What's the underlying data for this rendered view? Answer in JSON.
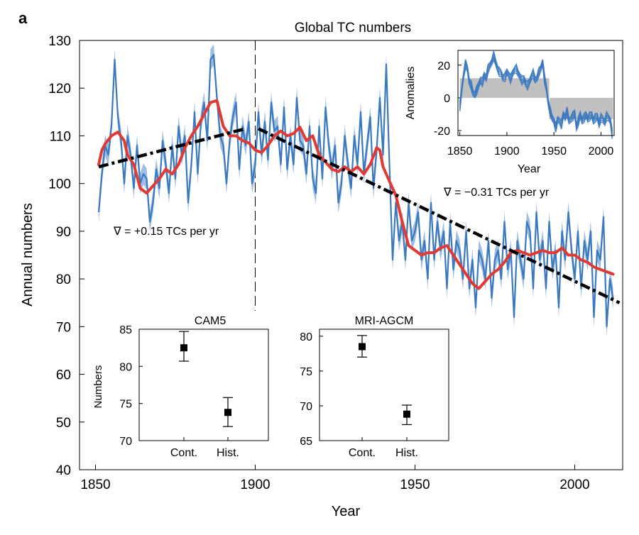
{
  "panel_label": "a",
  "colors": {
    "annual": "#3a78bf",
    "annual_band": "#9dbde3",
    "smooth": "#e03a33",
    "trend": "#000000",
    "anomaly_fill": "#c0c0c0"
  },
  "chart_data": [
    {
      "id": "main",
      "type": "line",
      "title": "Global TC numbers",
      "xlabel": "Year",
      "ylabel": "Annual numbers",
      "xlim": [
        1845,
        2015
      ],
      "ylim": [
        40,
        130
      ],
      "xticks": [
        1850,
        1900,
        1950,
        2000
      ],
      "yticks": [
        40,
        50,
        60,
        70,
        80,
        90,
        100,
        110,
        120,
        130
      ],
      "split_year": 1900,
      "series": [
        {
          "kind": "annual",
          "x": [
            1851,
            1852,
            1853,
            1854,
            1855,
            1856,
            1857,
            1858,
            1859,
            1860,
            1861,
            1862,
            1863,
            1864,
            1865,
            1866,
            1867,
            1868,
            1869,
            1870,
            1871,
            1872,
            1873,
            1874,
            1875,
            1876,
            1877,
            1878,
            1879,
            1880,
            1881,
            1882,
            1883,
            1884,
            1885,
            1886,
            1887,
            1888,
            1889,
            1890,
            1891,
            1892,
            1893,
            1894,
            1895,
            1896,
            1897,
            1898,
            1899,
            1900,
            1901,
            1902,
            1903,
            1904,
            1905,
            1906,
            1907,
            1908,
            1909,
            1910,
            1911,
            1912,
            1913,
            1914,
            1915,
            1916,
            1917,
            1918,
            1919,
            1920,
            1921,
            1922,
            1923,
            1924,
            1925,
            1926,
            1927,
            1928,
            1929,
            1930,
            1931,
            1932,
            1933,
            1934,
            1935,
            1936,
            1937,
            1938,
            1939,
            1940,
            1941,
            1942,
            1943,
            1944,
            1945,
            1946,
            1947,
            1948,
            1949,
            1950,
            1951,
            1952,
            1953,
            1954,
            1955,
            1956,
            1957,
            1958,
            1959,
            1960,
            1961,
            1962,
            1963,
            1964,
            1965,
            1966,
            1967,
            1968,
            1969,
            1970,
            1971,
            1972,
            1973,
            1974,
            1975,
            1976,
            1977,
            1978,
            1979,
            1980,
            1981,
            1982,
            1983,
            1984,
            1985,
            1986,
            1987,
            1988,
            1989,
            1990,
            1991,
            1992,
            1993,
            1994,
            1995,
            1996,
            1997,
            1998,
            1999,
            2000,
            2001,
            2002,
            2003,
            2004,
            2005,
            2006,
            2007,
            2008,
            2009,
            2010,
            2011,
            2012
          ],
          "y": [
            94,
            102,
            108,
            106,
            112,
            126,
            114,
            109,
            100,
            110,
            106,
            99,
            108,
            100,
            102,
            101,
            92,
            96,
            103,
            99,
            109,
            104,
            98,
            108,
            101,
            112,
            106,
            110,
            96,
            104,
            115,
            102,
            113,
            117,
            109,
            126,
            127,
            118,
            110,
            108,
            100,
            109,
            114,
            117,
            103,
            112,
            108,
            113,
            100,
            104,
            115,
            106,
            113,
            105,
            117,
            111,
            112,
            104,
            116,
            103,
            110,
            104,
            118,
            109,
            108,
            102,
            112,
            101,
            98,
            112,
            101,
            116,
            108,
            103,
            108,
            96,
            100,
            110,
            104,
            99,
            110,
            104,
            115,
            102,
            108,
            114,
            99,
            107,
            118,
            106,
            125,
            104,
            84,
            96,
            88,
            92,
            84,
            96,
            88,
            90,
            94,
            84,
            88,
            80,
            96,
            84,
            92,
            86,
            90,
            78,
            92,
            82,
            88,
            86,
            80,
            90,
            78,
            84,
            74,
            86,
            84,
            80,
            88,
            76,
            84,
            86,
            80,
            92,
            82,
            86,
            72,
            88,
            84,
            80,
            92,
            90,
            78,
            94,
            84,
            88,
            78,
            92,
            82,
            86,
            74,
            90,
            84,
            94,
            86,
            80,
            90,
            78,
            88,
            84,
            90,
            72,
            86,
            84,
            93,
            70,
            80,
            76
          ]
        },
        {
          "kind": "smoothed",
          "x": [
            1851,
            1852,
            1853,
            1855,
            1857,
            1859,
            1860,
            1862,
            1864,
            1866,
            1868,
            1870,
            1872,
            1874,
            1876,
            1878,
            1880,
            1882,
            1884,
            1886,
            1888,
            1890,
            1892,
            1894,
            1896,
            1898,
            1900,
            1902,
            1904,
            1906,
            1908,
            1910,
            1912,
            1914,
            1916,
            1918,
            1920,
            1922,
            1924,
            1926,
            1928,
            1930,
            1932,
            1934,
            1936,
            1938,
            1939,
            1940,
            1942,
            1944,
            1946,
            1948,
            1950,
            1952,
            1954,
            1956,
            1958,
            1960,
            1962,
            1964,
            1966,
            1968,
            1970,
            1972,
            1974,
            1976,
            1978,
            1980,
            1982,
            1984,
            1986,
            1988,
            1990,
            1992,
            1994,
            1996,
            1998,
            2000,
            2002,
            2004,
            2006,
            2008,
            2010,
            2012
          ],
          "y": [
            104,
            107,
            108.3,
            110,
            110.8,
            109,
            106,
            104,
            99,
            98,
            99.5,
            101,
            103,
            102,
            104,
            107.5,
            110,
            112,
            114.5,
            117,
            117.4,
            112,
            110,
            110,
            109,
            108.5,
            107,
            106.5,
            108,
            110,
            111,
            110,
            110.5,
            111.8,
            109,
            110,
            106,
            104.5,
            103,
            102.5,
            103.5,
            102.5,
            103.5,
            102,
            104,
            107.5,
            107,
            103.5,
            100.5,
            97.5,
            92,
            87,
            86,
            85,
            85.5,
            85.5,
            86.5,
            87,
            85,
            83,
            81,
            79,
            78,
            79.5,
            81,
            82,
            83.5,
            85.5,
            86,
            85.5,
            85,
            85.5,
            86,
            85.5,
            85.5,
            86.5,
            85,
            85,
            84,
            83.5,
            82.5,
            82,
            81.5,
            81
          ]
        },
        {
          "kind": "trend",
          "label": "∇ = +0.15 TCs per yr",
          "x": [
            1851,
            1897
          ],
          "y": [
            103.5,
            111.5
          ]
        },
        {
          "kind": "trend",
          "label": "∇ = −0.31 TCs per yr",
          "x": [
            1901,
            2014
          ],
          "y": [
            111.5,
            75
          ]
        }
      ]
    },
    {
      "id": "anomalies-inset",
      "type": "line",
      "title": "",
      "xlabel": "Year",
      "ylabel": "Anomalies",
      "xlim": [
        1848,
        2014
      ],
      "ylim": [
        -23,
        29
      ],
      "xticks": [
        1850,
        1900,
        1950,
        2000
      ],
      "yticks": [
        -20,
        0,
        20
      ],
      "shading": [
        {
          "x": [
            1850,
            1945
          ],
          "y": 12
        },
        {
          "x": [
            1945,
            2013
          ],
          "y": -13
        }
      ],
      "series": [
        {
          "kind": "anomaly-ensemble",
          "x": [
            1850,
            1852,
            1854,
            1856,
            1858,
            1860,
            1862,
            1864,
            1866,
            1868,
            1870,
            1872,
            1874,
            1876,
            1878,
            1880,
            1882,
            1884,
            1886,
            1888,
            1890,
            1892,
            1894,
            1896,
            1898,
            1900,
            1902,
            1904,
            1906,
            1908,
            1910,
            1912,
            1914,
            1916,
            1918,
            1920,
            1922,
            1924,
            1926,
            1928,
            1930,
            1932,
            1934,
            1936,
            1938,
            1940,
            1942,
            1944,
            1946,
            1948,
            1950,
            1952,
            1954,
            1956,
            1958,
            1960,
            1962,
            1964,
            1966,
            1968,
            1970,
            1972,
            1974,
            1976,
            1978,
            1980,
            1982,
            1984,
            1986,
            1988,
            1990,
            1992,
            1994,
            1996,
            1998,
            2000,
            2002,
            2004,
            2006,
            2008,
            2010,
            2012
          ],
          "y": [
            -5,
            5,
            14,
            21,
            18,
            10,
            8,
            3,
            2,
            5,
            8,
            11,
            10,
            14,
            12,
            18,
            20,
            22,
            26,
            22,
            18,
            16,
            15,
            12,
            13,
            16,
            14,
            12,
            15,
            17,
            18,
            15,
            13,
            11,
            12,
            9,
            8,
            10,
            13,
            15,
            11,
            12,
            16,
            18,
            22,
            12,
            6,
            -3,
            -8,
            -12,
            -14,
            -18,
            -13,
            -14,
            -16,
            -10,
            -12,
            -8,
            -14,
            -13,
            -11,
            -9,
            -18,
            -14,
            -10,
            -14,
            -12,
            -10,
            -13,
            -11,
            -10,
            -14,
            -12,
            -11,
            -16,
            -12,
            -13,
            -15,
            -11,
            -12,
            -14,
            -22
          ]
        }
      ]
    },
    {
      "id": "cam5",
      "type": "scatter",
      "title": "CAM5",
      "ylabel": "Numbers",
      "categories": [
        "Cont.",
        "Hist."
      ],
      "values": [
        82.5,
        73.8
      ],
      "errors": [
        [
          80.7,
          84.7
        ],
        [
          71.9,
          75.8
        ]
      ],
      "ylim": [
        70,
        85
      ],
      "yticks": [
        70,
        75,
        80,
        85
      ]
    },
    {
      "id": "mri-agcm",
      "type": "scatter",
      "title": "MRI-AGCM",
      "ylabel": "",
      "categories": [
        "Cont.",
        "Hist."
      ],
      "values": [
        78.5,
        68.8
      ],
      "errors": [
        [
          77,
          80.1
        ],
        [
          67.3,
          70.1
        ]
      ],
      "ylim": [
        65,
        81
      ],
      "yticks": [
        65,
        70,
        75,
        80
      ]
    }
  ]
}
